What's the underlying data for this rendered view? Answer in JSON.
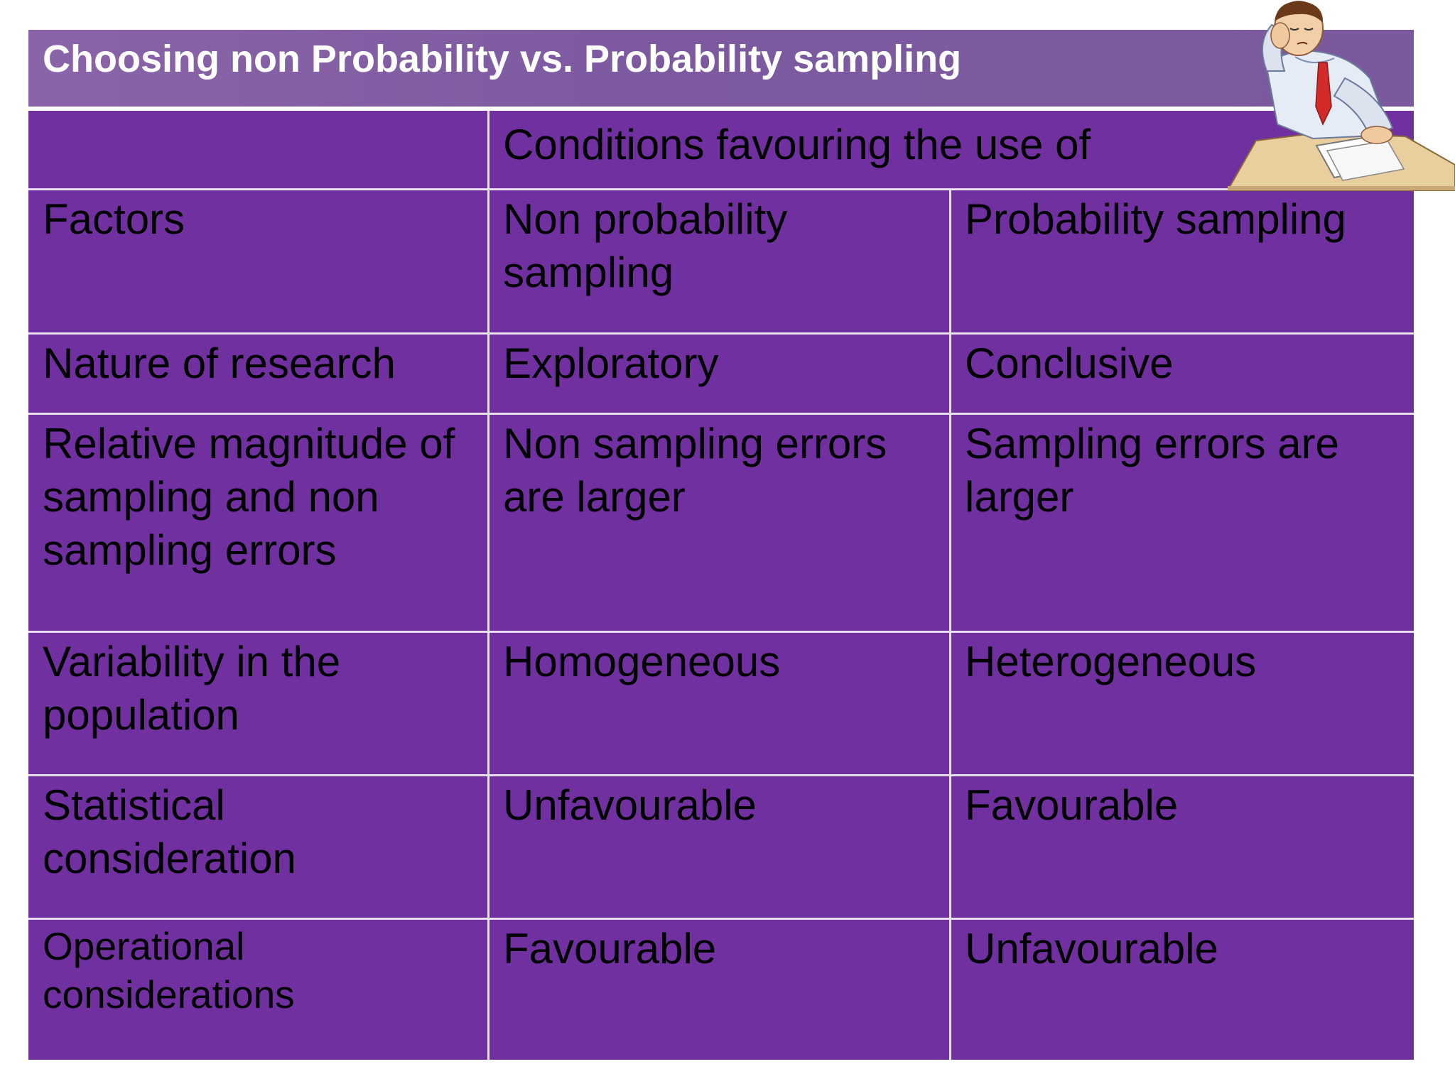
{
  "slide": {
    "title": "Choosing non Probability vs. Probability sampling"
  },
  "table": {
    "group_header": "Conditions favouring the use of",
    "columns": [
      "Factors",
      "Non probability sampling",
      "Probability sampling"
    ],
    "rows": [
      [
        "Nature of research",
        "Exploratory",
        "Conclusive"
      ],
      [
        "Relative magnitude of  sampling and non  sampling errors",
        "Non sampling errors are larger",
        "Sampling errors are larger"
      ],
      [
        "Variability in the  population",
        "Homogeneous",
        "Heterogeneous"
      ],
      [
        "Statistical consideration",
        "Unfavourable",
        "Favourable"
      ],
      [
        "Operational considerations",
        "Favourable",
        "Unfavourable"
      ]
    ]
  },
  "clipart": {
    "icon": "tired-man-at-desk-icon",
    "colors": {
      "background": "#7030a0",
      "title_bar": "#7d5aa0",
      "grid_line": "#e8dcef"
    }
  }
}
